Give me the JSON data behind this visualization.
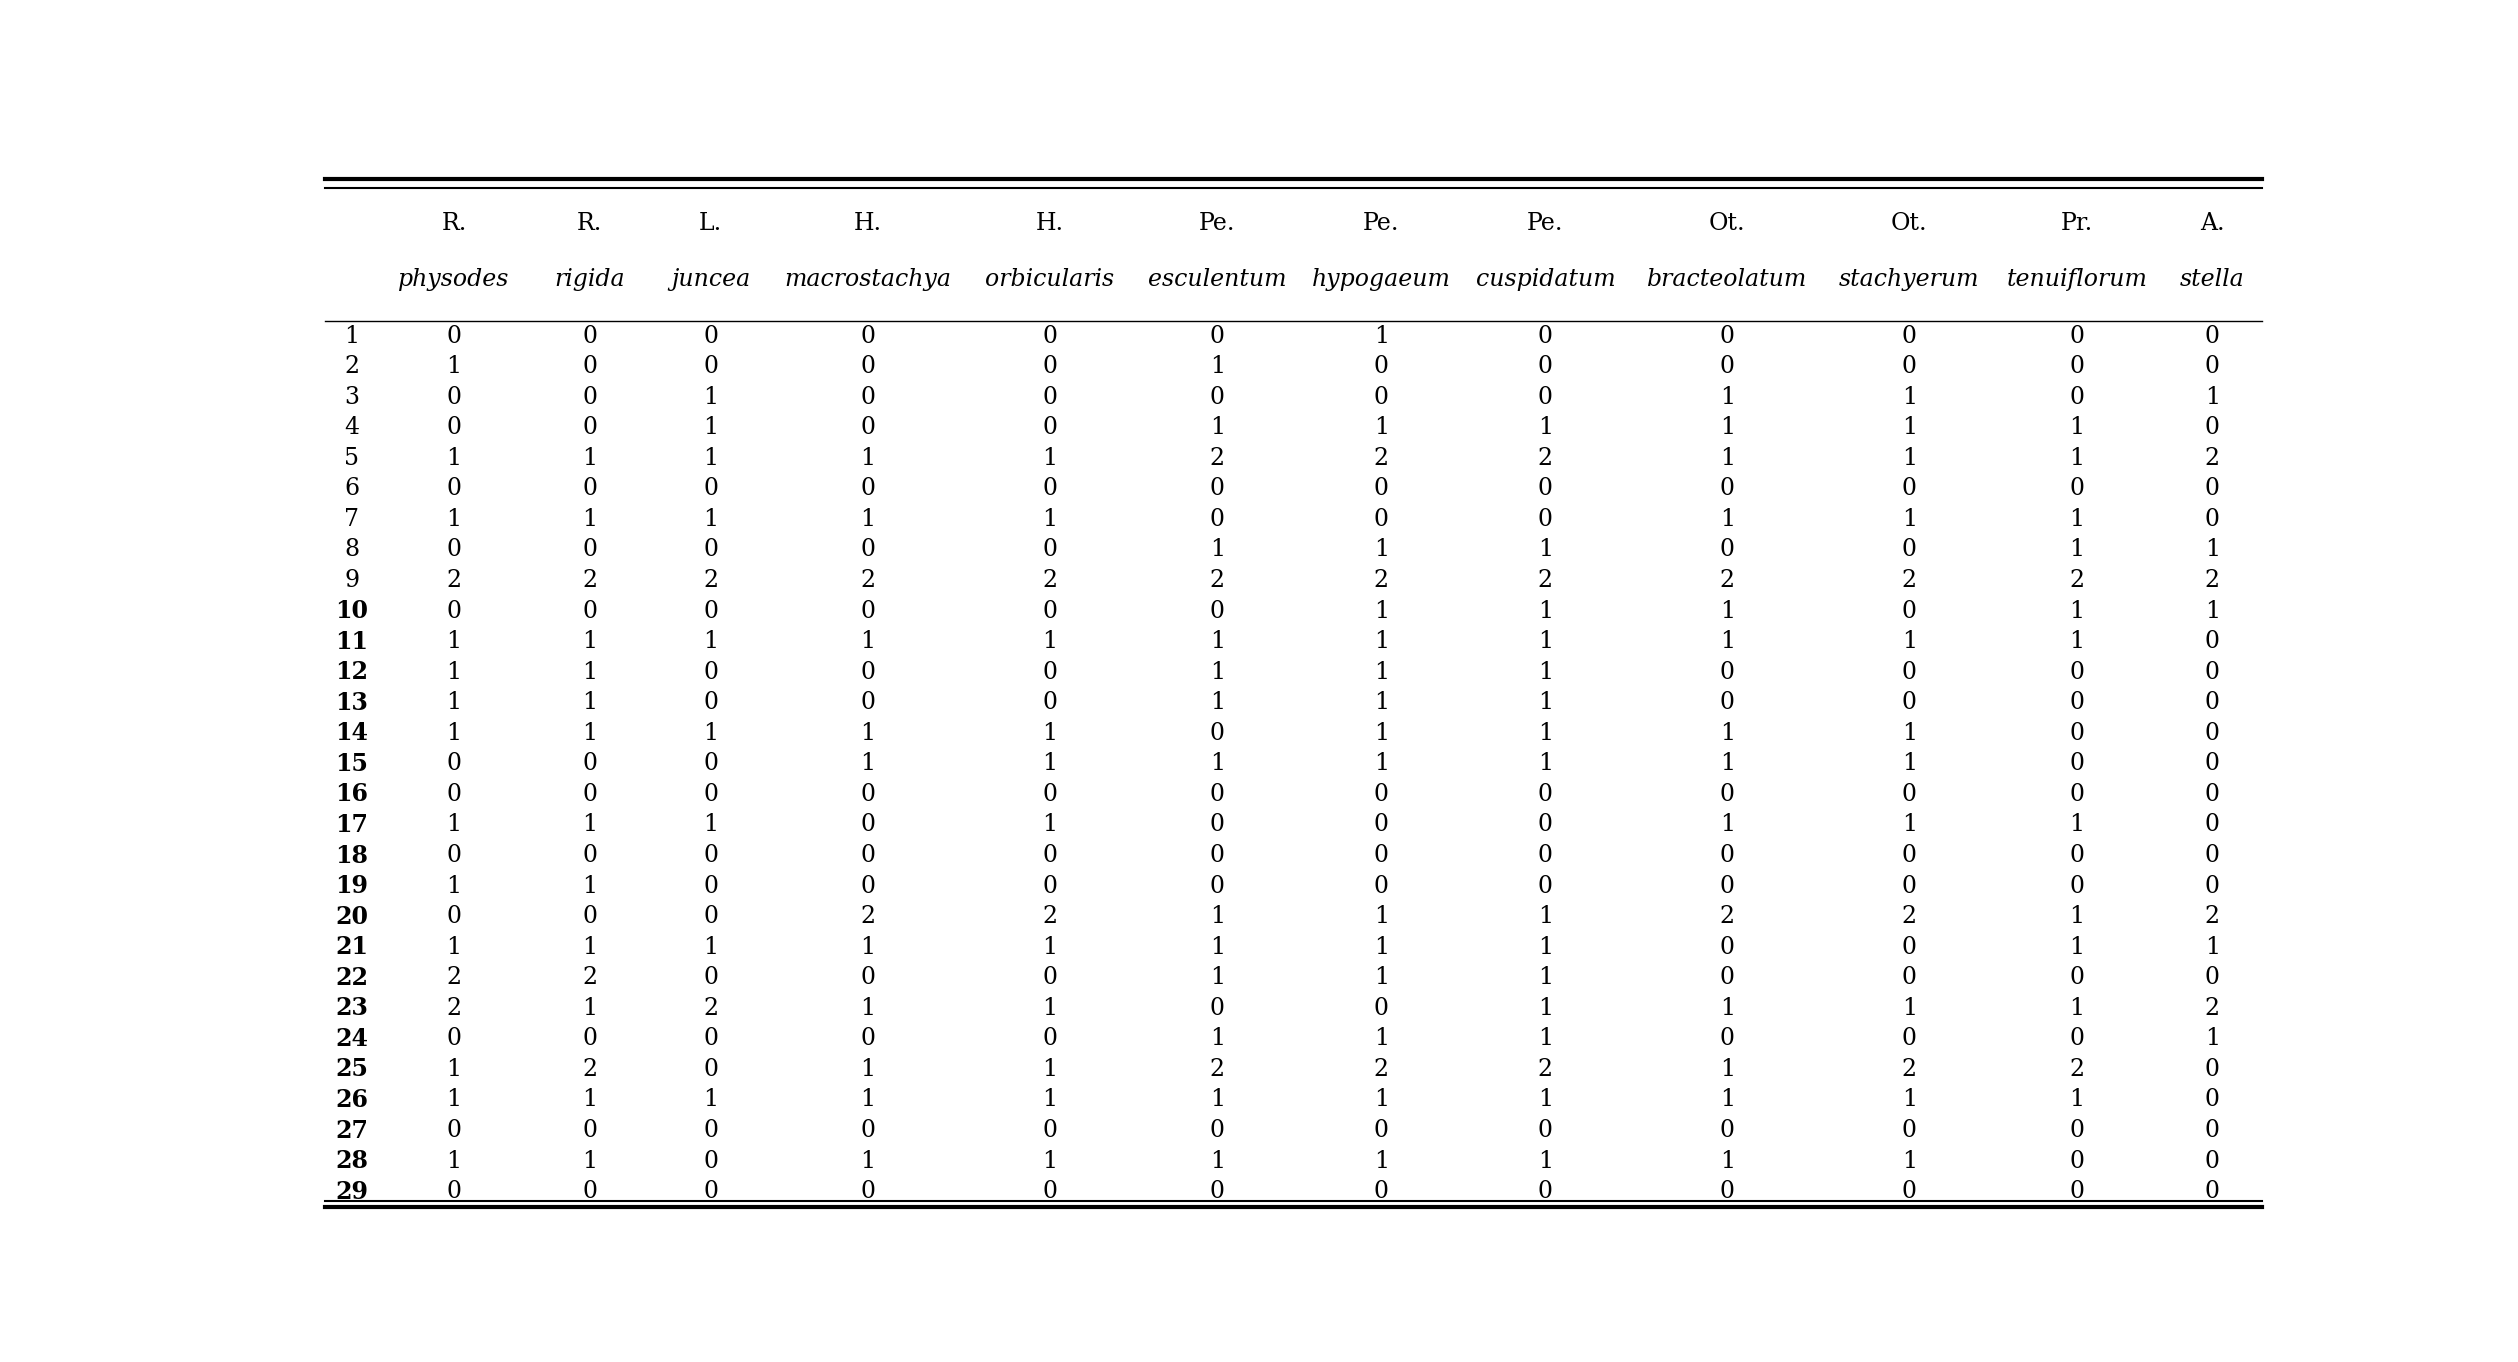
{
  "col_headers_line1": [
    "R.",
    "R.",
    "L.",
    "H.",
    "H.",
    "Pe.",
    "Pe.",
    "Pe.",
    "Ot.",
    "Ot.",
    "Pr.",
    "A."
  ],
  "col_headers_line2": [
    "physodes",
    "rigida",
    "juncea",
    "macrostachya",
    "orbicularis",
    "esculentum",
    "hypogaeum",
    "cuspidatum",
    "bracteolatum",
    "stachyerum",
    "tenuiflorum",
    "stella"
  ],
  "row_labels": [
    "1",
    "2",
    "3",
    "4",
    "5",
    "6",
    "7",
    "8",
    "9",
    "10",
    "11",
    "12",
    "13",
    "14",
    "15",
    "16",
    "17",
    "18",
    "19",
    "20",
    "21",
    "22",
    "23",
    "24",
    "25",
    "26",
    "27",
    "28",
    "29"
  ],
  "table_data": [
    [
      0,
      0,
      0,
      0,
      0,
      0,
      1,
      0,
      0,
      0,
      0,
      0
    ],
    [
      1,
      0,
      0,
      0,
      0,
      1,
      0,
      0,
      0,
      0,
      0,
      0
    ],
    [
      0,
      0,
      1,
      0,
      0,
      0,
      0,
      0,
      1,
      1,
      0,
      1
    ],
    [
      0,
      0,
      1,
      0,
      0,
      1,
      1,
      1,
      1,
      1,
      1,
      0
    ],
    [
      1,
      1,
      1,
      1,
      1,
      2,
      2,
      2,
      1,
      1,
      1,
      2
    ],
    [
      0,
      0,
      0,
      0,
      0,
      0,
      0,
      0,
      0,
      0,
      0,
      0
    ],
    [
      1,
      1,
      1,
      1,
      1,
      0,
      0,
      0,
      1,
      1,
      1,
      0
    ],
    [
      0,
      0,
      0,
      0,
      0,
      1,
      1,
      1,
      0,
      0,
      1,
      1
    ],
    [
      2,
      2,
      2,
      2,
      2,
      2,
      2,
      2,
      2,
      2,
      2,
      2
    ],
    [
      0,
      0,
      0,
      0,
      0,
      0,
      1,
      1,
      1,
      0,
      1,
      1
    ],
    [
      1,
      1,
      1,
      1,
      1,
      1,
      1,
      1,
      1,
      1,
      1,
      0
    ],
    [
      1,
      1,
      0,
      0,
      0,
      1,
      1,
      1,
      0,
      0,
      0,
      0
    ],
    [
      1,
      1,
      0,
      0,
      0,
      1,
      1,
      1,
      0,
      0,
      0,
      0
    ],
    [
      1,
      1,
      1,
      1,
      1,
      0,
      1,
      1,
      1,
      1,
      0,
      0
    ],
    [
      0,
      0,
      0,
      1,
      1,
      1,
      1,
      1,
      1,
      1,
      0,
      0
    ],
    [
      0,
      0,
      0,
      0,
      0,
      0,
      0,
      0,
      0,
      0,
      0,
      0
    ],
    [
      1,
      1,
      1,
      0,
      1,
      0,
      0,
      0,
      1,
      1,
      1,
      0
    ],
    [
      0,
      0,
      0,
      0,
      0,
      0,
      0,
      0,
      0,
      0,
      0,
      0
    ],
    [
      1,
      1,
      0,
      0,
      0,
      0,
      0,
      0,
      0,
      0,
      0,
      0
    ],
    [
      0,
      0,
      0,
      2,
      2,
      1,
      1,
      1,
      2,
      2,
      1,
      2
    ],
    [
      1,
      1,
      1,
      1,
      1,
      1,
      1,
      1,
      0,
      0,
      1,
      1
    ],
    [
      2,
      2,
      0,
      0,
      0,
      1,
      1,
      1,
      0,
      0,
      0,
      0
    ],
    [
      2,
      1,
      2,
      1,
      1,
      0,
      0,
      1,
      1,
      1,
      1,
      2
    ],
    [
      0,
      0,
      0,
      0,
      0,
      1,
      1,
      1,
      0,
      0,
      0,
      1
    ],
    [
      1,
      2,
      0,
      1,
      1,
      2,
      2,
      2,
      1,
      2,
      2,
      0
    ],
    [
      1,
      1,
      1,
      1,
      1,
      1,
      1,
      1,
      1,
      1,
      1,
      0
    ],
    [
      0,
      0,
      0,
      0,
      0,
      0,
      0,
      0,
      0,
      0,
      0,
      0
    ],
    [
      1,
      1,
      0,
      1,
      1,
      1,
      1,
      1,
      1,
      1,
      0,
      0
    ],
    [
      0,
      0,
      0,
      0,
      0,
      0,
      0,
      0,
      0,
      0,
      0,
      0
    ]
  ],
  "background_color": "#ffffff",
  "text_color": "#000000",
  "header_fontsize": 17,
  "data_fontsize": 17,
  "row_label_fontsize": 17,
  "col_widths_rel": [
    1.05,
    0.85,
    0.85,
    1.35,
    1.2,
    1.15,
    1.15,
    1.15,
    1.4,
    1.15,
    1.2,
    0.7
  ]
}
